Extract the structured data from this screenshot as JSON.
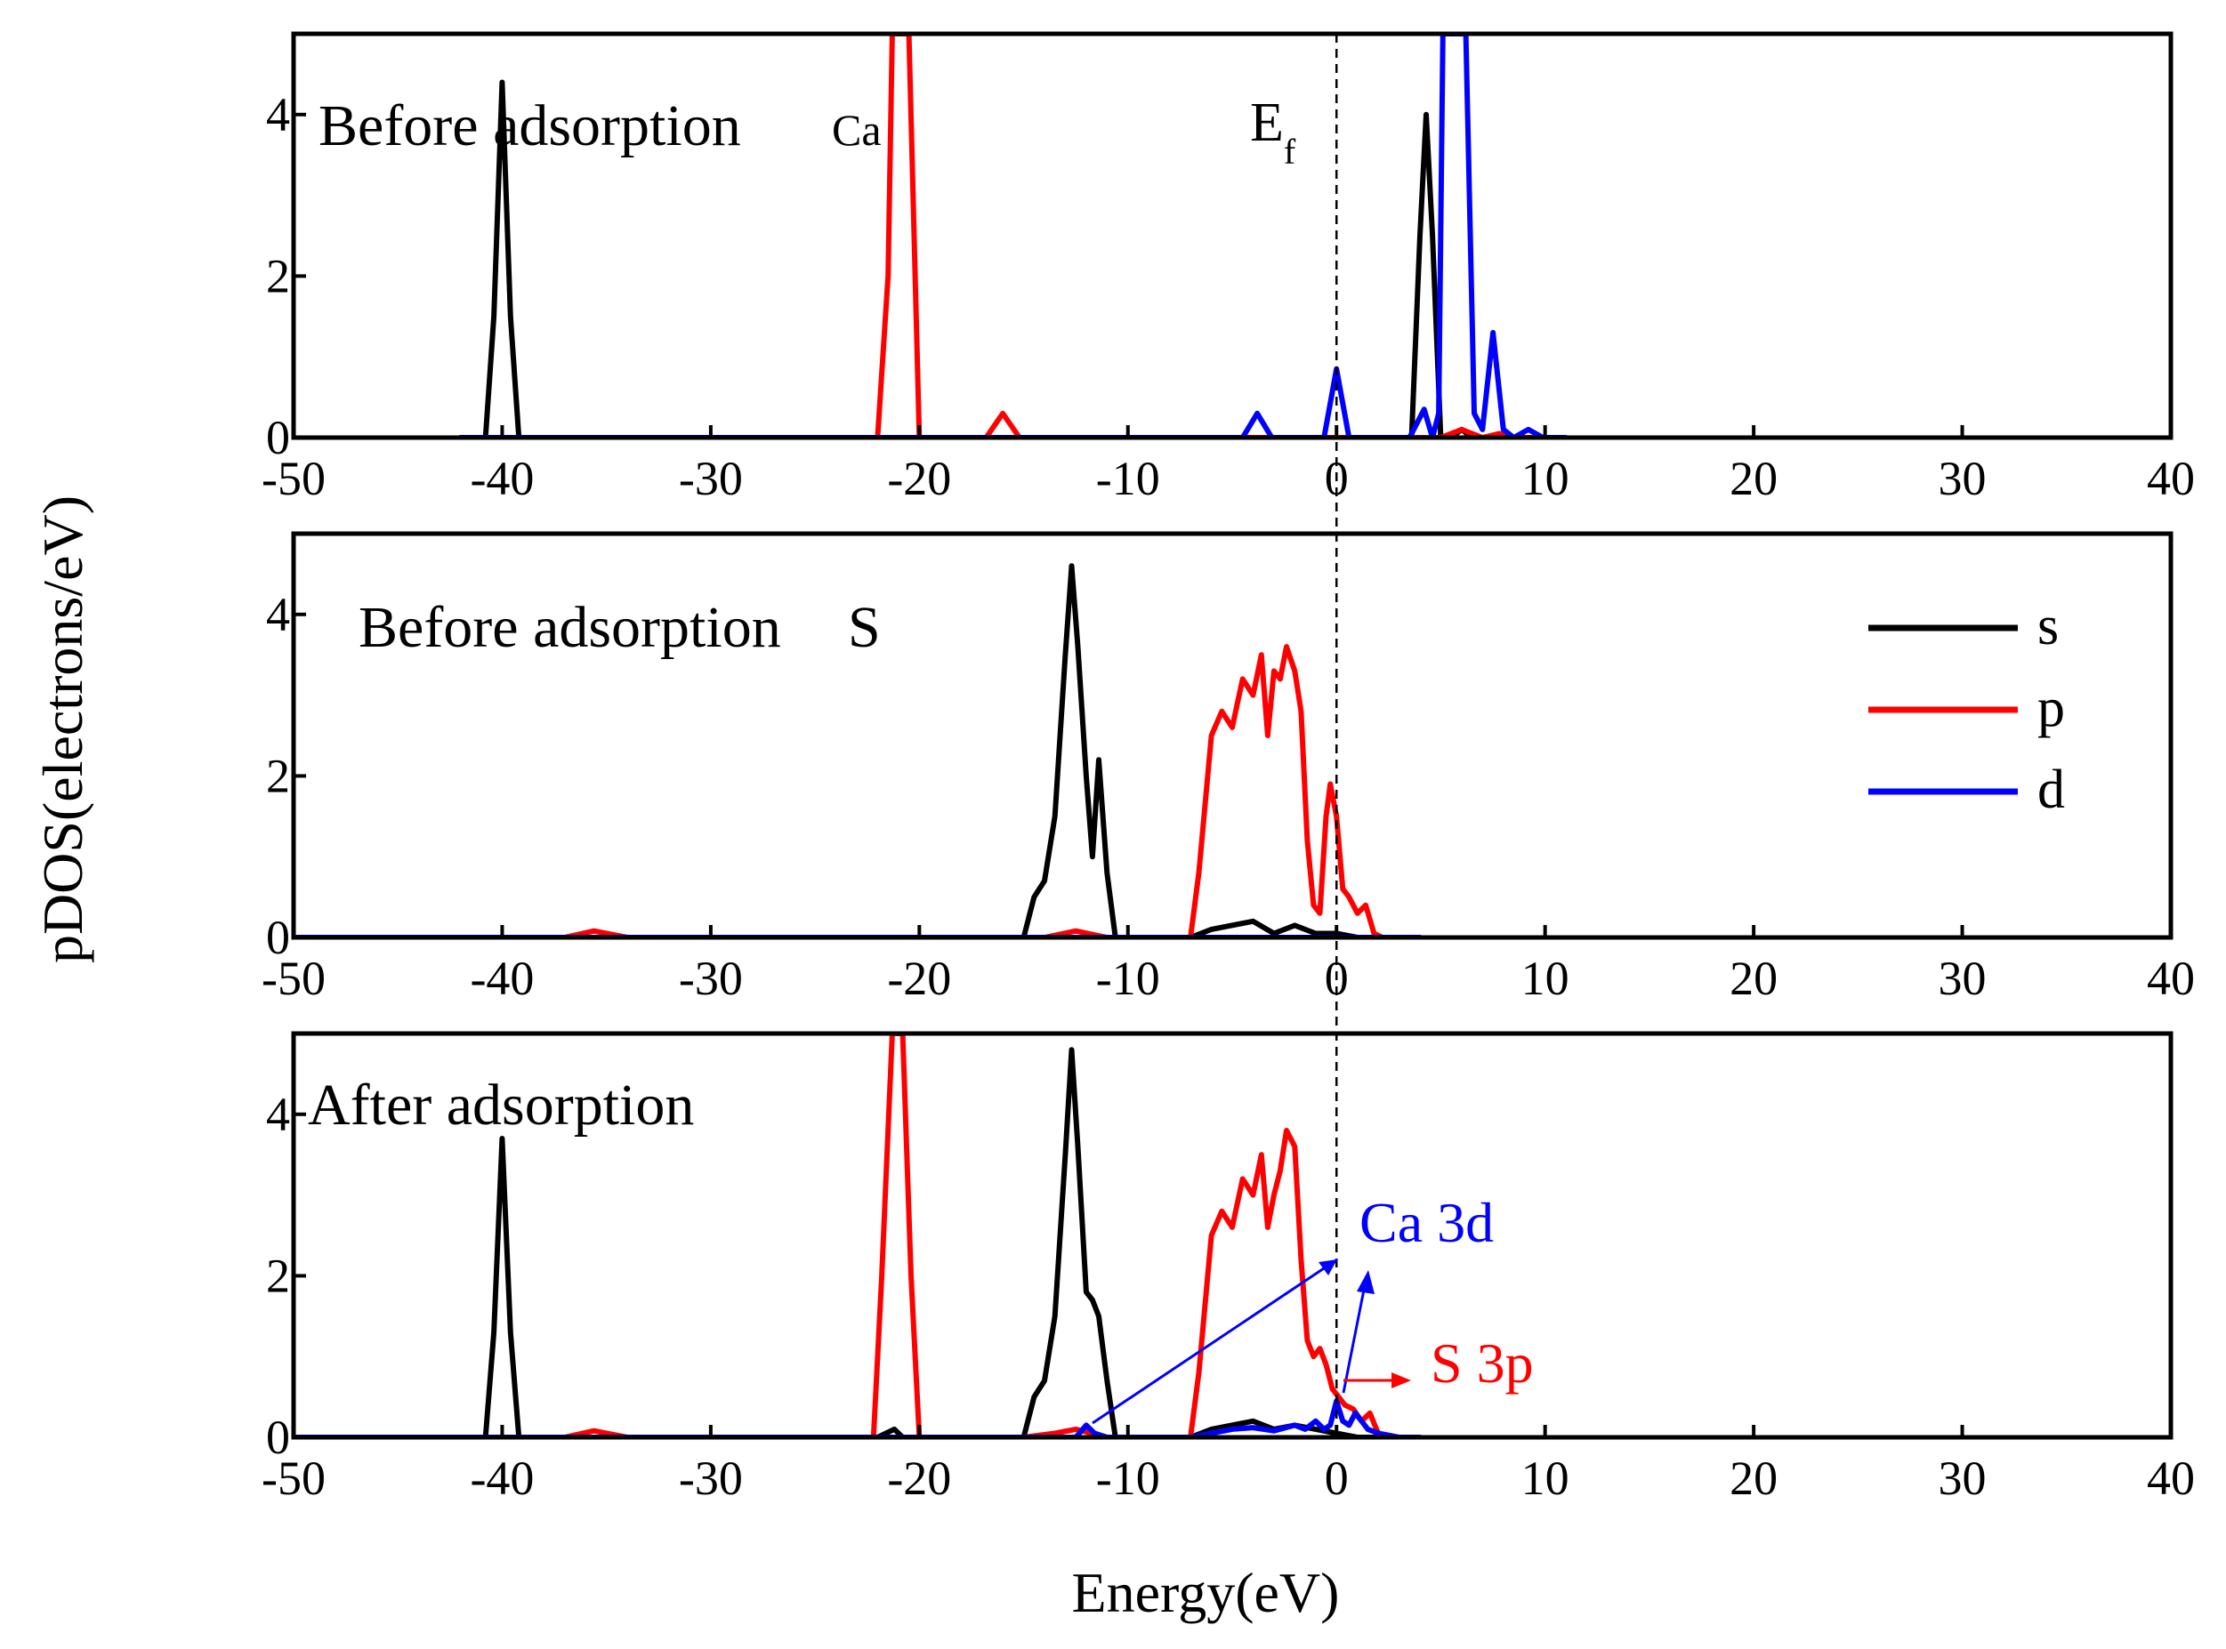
{
  "figure": {
    "ylabel": "pDOS(electrons/eV)",
    "xlabel": "Energy(eV)",
    "fermi_label_main": "E",
    "fermi_label_sub": "f"
  },
  "legend": [
    {
      "key": "s",
      "label": "s",
      "color": "#000000"
    },
    {
      "key": "p",
      "label": "p",
      "color": "#ff0000"
    },
    {
      "key": "d",
      "label": "d",
      "color": "#0000ff"
    }
  ],
  "annotations": {
    "ca3d": {
      "label": "Ca 3d",
      "color": "#0000ff"
    },
    "s3p": {
      "label": "S 3p",
      "color": "#ff0000"
    }
  },
  "chart_data": [
    {
      "type": "line",
      "title": "Before adsorption",
      "species": "Ca",
      "xlim": [
        -50,
        40
      ],
      "ylim": [
        0,
        5
      ],
      "xticks": [
        -50,
        -40,
        -30,
        -20,
        -10,
        0,
        10,
        20,
        30,
        40
      ],
      "yticks": [
        0,
        2,
        4
      ],
      "series": [
        {
          "name": "s",
          "color": "#000000",
          "x": [
            -42,
            -40.8,
            -40.4,
            -40.0,
            -39.6,
            -39.2,
            -38,
            3.6,
            4.0,
            4.3,
            4.6,
            5.0,
            5.5,
            6.0,
            6.5,
            7
          ],
          "y": [
            0,
            0,
            1.5,
            4.4,
            1.5,
            0,
            0,
            0,
            2.5,
            4.0,
            2.5,
            0,
            0,
            0.1,
            0,
            0
          ]
        },
        {
          "name": "p",
          "color": "#ff0000",
          "x": [
            -25,
            -22.0,
            -21.5,
            -21.3,
            -20.8,
            -20.5,
            -20.0,
            -19,
            -16.8,
            -16.0,
            -15.2,
            -14,
            5.0,
            6.0,
            7.0,
            7.8,
            8.5,
            10
          ],
          "y": [
            0,
            0,
            2,
            5,
            5,
            5,
            0,
            0,
            0,
            0.3,
            0,
            0,
            0,
            0.1,
            0,
            0.05,
            0,
            0
          ]
        },
        {
          "name": "d",
          "color": "#0000ff",
          "x": [
            -42,
            -4.5,
            -3.8,
            -3.1,
            -0.6,
            0.0,
            0.6,
            3.5,
            4.2,
            4.6,
            4.9,
            5.1,
            6.2,
            6.6,
            7.0,
            7.5,
            8.0,
            8.5,
            9.2,
            9.9,
            11
          ],
          "y": [
            0,
            0,
            0.3,
            0,
            0,
            0.85,
            0,
            0,
            0.35,
            0,
            0.3,
            5,
            5,
            0.3,
            0.1,
            1.3,
            0.1,
            0,
            0.1,
            0,
            0
          ]
        }
      ]
    },
    {
      "type": "line",
      "title": "Before adsorption",
      "species": "S",
      "xlim": [
        -50,
        40
      ],
      "ylim": [
        0,
        5
      ],
      "xticks": [
        -50,
        -40,
        -30,
        -20,
        -10,
        0,
        10,
        20,
        30,
        40
      ],
      "yticks": [
        0,
        2,
        4
      ],
      "series": [
        {
          "name": "s",
          "color": "#000000",
          "x": [
            -50,
            -15,
            -14.5,
            -14.0,
            -13.5,
            -13.0,
            -12.7,
            -12.4,
            -12.0,
            -11.7,
            -11.4,
            -11.0,
            -10.6,
            -10.3,
            -8,
            -7,
            -6.0,
            -4.0,
            -3.0,
            -2.0,
            -1.0,
            0.0,
            1.0,
            2.0
          ],
          "y": [
            0,
            0,
            0.5,
            0.7,
            1.5,
            3.5,
            4.6,
            3.6,
            2.0,
            1.0,
            2.2,
            0.8,
            0,
            0,
            0,
            0,
            0.1,
            0.2,
            0.05,
            0.15,
            0.05,
            0.05,
            0,
            0
          ]
        },
        {
          "name": "p",
          "color": "#ff0000",
          "x": [
            -50,
            -37,
            -35.6,
            -34,
            -20,
            -14,
            -12.5,
            -11,
            -7,
            -6.6,
            -6.0,
            -5.5,
            -5.0,
            -4.5,
            -4.0,
            -3.6,
            -3.3,
            -3.0,
            -2.7,
            -2.4,
            -2.0,
            -1.7,
            -1.4,
            -1.1,
            -0.8,
            -0.5,
            -0.3,
            0.0,
            0.3,
            0.6,
            1.0,
            1.4,
            1.8,
            2.2,
            4
          ],
          "y": [
            0,
            0,
            0.08,
            0,
            0,
            0,
            0.08,
            0,
            0,
            0.8,
            2.5,
            2.8,
            2.6,
            3.2,
            3.0,
            3.5,
            2.5,
            3.3,
            3.2,
            3.6,
            3.3,
            2.8,
            1.2,
            0.4,
            0.3,
            1.5,
            1.9,
            1.5,
            0.6,
            0.5,
            0.3,
            0.4,
            0.05,
            0,
            0
          ]
        },
        {
          "name": "d",
          "color": "#0000ff",
          "x": [
            -50,
            4
          ],
          "y": [
            0,
            0
          ]
        }
      ]
    },
    {
      "type": "line",
      "title": "After adsorption",
      "species": "",
      "xlim": [
        -50,
        40
      ],
      "ylim": [
        0,
        5
      ],
      "xticks": [
        -50,
        -40,
        -30,
        -20,
        -10,
        0,
        10,
        20,
        30,
        40
      ],
      "yticks": [
        0,
        2,
        4
      ],
      "series": [
        {
          "name": "s",
          "color": "#000000",
          "x": [
            -50,
            -40.8,
            -40.4,
            -40.0,
            -39.6,
            -39.2,
            -22,
            -21.2,
            -20.8,
            -20.5,
            -15,
            -14.5,
            -14.0,
            -13.5,
            -13.0,
            -12.7,
            -12.4,
            -12.0,
            -11.7,
            -11.4,
            -11.0,
            -10.6,
            -10.3,
            -8,
            -7,
            -6.0,
            -4.0,
            -3.0,
            -2.0,
            -1.0,
            0.0,
            1.0,
            2.0
          ],
          "y": [
            0,
            0,
            1.3,
            3.7,
            1.3,
            0,
            0,
            0.1,
            0,
            0,
            0,
            0.5,
            0.7,
            1.5,
            3.5,
            4.8,
            3.6,
            1.8,
            1.7,
            1.5,
            0.7,
            0,
            0,
            0,
            0,
            0.1,
            0.2,
            0.1,
            0.15,
            0.1,
            0.05,
            0,
            0
          ]
        },
        {
          "name": "p",
          "color": "#ff0000",
          "x": [
            -50,
            -37,
            -35.6,
            -34,
            -22.2,
            -21.8,
            -21.3,
            -20.8,
            -20.4,
            -20.0,
            -15,
            -13.5,
            -12.5,
            -11.0,
            -7,
            -6.6,
            -6.0,
            -5.5,
            -5.0,
            -4.5,
            -4.0,
            -3.6,
            -3.3,
            -3.0,
            -2.7,
            -2.4,
            -2.0,
            -1.7,
            -1.4,
            -1.1,
            -0.8,
            -0.5,
            -0.2,
            0.1,
            0.4,
            0.8,
            1.2,
            1.6,
            2.0,
            2.5,
            4
          ],
          "y": [
            0,
            0,
            0.08,
            0,
            0,
            2,
            5,
            5,
            2,
            0,
            0,
            0.05,
            0.1,
            0,
            0,
            0.8,
            2.5,
            2.8,
            2.6,
            3.2,
            3.0,
            3.5,
            2.6,
            3.0,
            3.3,
            3.8,
            3.6,
            2.2,
            1.2,
            1.0,
            1.1,
            0.9,
            0.6,
            0.5,
            0.4,
            0.35,
            0.2,
            0.3,
            0.05,
            0,
            0
          ]
        },
        {
          "name": "d",
          "color": "#0000ff",
          "x": [
            -50,
            -12.5,
            -12.0,
            -11.6,
            -11.0,
            -7,
            -5.0,
            -4.0,
            -3.0,
            -2.0,
            -1.5,
            -1.0,
            -0.6,
            -0.3,
            0.0,
            0.3,
            0.6,
            0.9,
            1.2,
            1.5,
            2.0,
            3.0,
            4
          ],
          "y": [
            0,
            0,
            0.15,
            0.05,
            0,
            0,
            0.1,
            0.12,
            0.08,
            0.15,
            0.1,
            0.2,
            0.1,
            0.15,
            0.45,
            0.2,
            0.15,
            0.3,
            0.2,
            0.1,
            0.05,
            0,
            0
          ]
        }
      ]
    }
  ]
}
